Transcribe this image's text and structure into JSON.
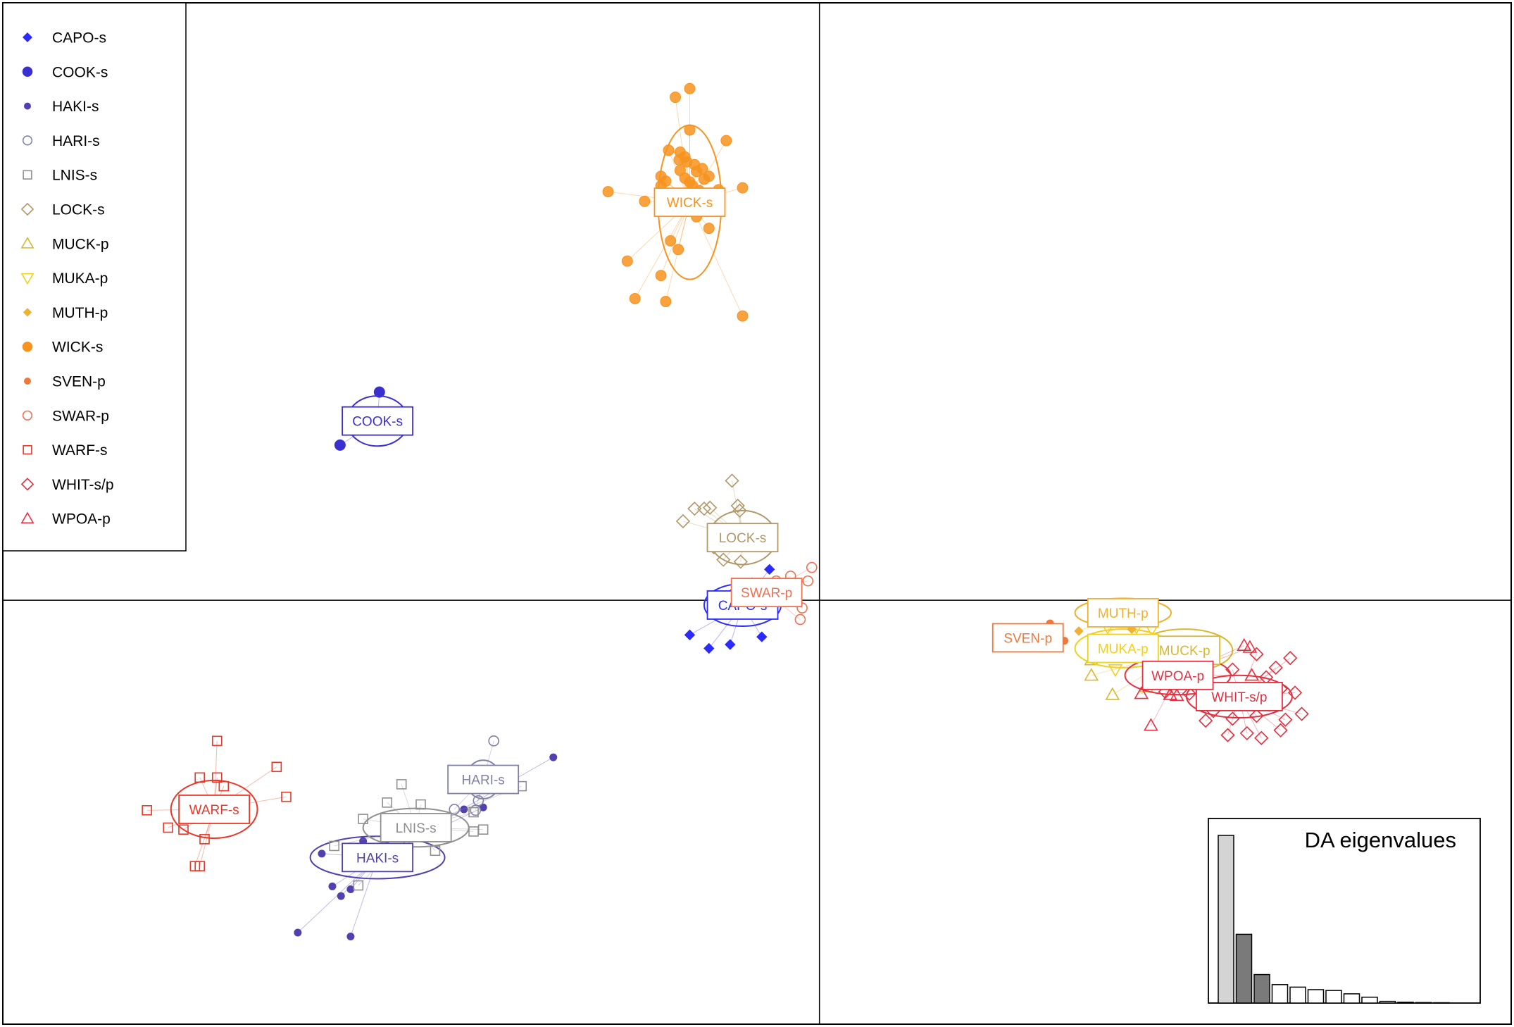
{
  "chart_data": {
    "type": "scatter",
    "axes": {
      "x_range": [
        -8.5,
        7.2
      ],
      "y_range": [
        -4.4,
        6.2
      ],
      "origin_lines": true
    },
    "legend": {
      "placement": "top-left"
    },
    "groups": [
      {
        "name": "CAPO-s",
        "color": "#2b2bff",
        "marker": "diamond-filled",
        "label": "CAPO-s",
        "centroid": [
          -0.8,
          -0.05
        ],
        "ellipse": [
          0.4,
          0.22
        ],
        "points": [
          [
            -1.35,
            -0.36
          ],
          [
            -1.15,
            -0.5
          ],
          [
            -0.93,
            -0.46
          ],
          [
            -0.6,
            -0.38
          ],
          [
            -0.52,
            0.32
          ],
          [
            -0.7,
            0.18
          ],
          [
            -0.9,
            0.08
          ]
        ]
      },
      {
        "name": "COOK-s",
        "color": "#3a2fd0",
        "marker": "circle-filled",
        "label": "COOK-s",
        "centroid": [
          -4.6,
          1.86
        ],
        "ellipse": [
          0.32,
          0.26
        ],
        "points": [
          [
            -4.58,
            2.16
          ],
          [
            -4.99,
            1.61
          ]
        ]
      },
      {
        "name": "HAKI-s",
        "color": "#5040b0",
        "marker": "circle-small-filled",
        "label": "HAKI-s",
        "centroid": [
          -4.6,
          -2.67
        ],
        "ellipse": [
          0.7,
          0.22
        ],
        "points": [
          [
            -5.43,
            -3.45
          ],
          [
            -4.88,
            -3.49
          ],
          [
            -5.07,
            -2.97
          ],
          [
            -4.98,
            -3.07
          ],
          [
            -4.88,
            -3.0
          ],
          [
            -5.18,
            -2.63
          ],
          [
            -4.75,
            -2.5
          ],
          [
            -4.5,
            -2.48
          ],
          [
            -3.7,
            -2.17
          ],
          [
            -3.5,
            -2.15
          ],
          [
            -2.77,
            -1.63
          ]
        ]
      },
      {
        "name": "HARI-s",
        "color": "#8080a8",
        "marker": "circle-open",
        "label": "HARI-s",
        "centroid": [
          -3.5,
          -1.86
        ],
        "ellipse": [
          0.18,
          0.2
        ],
        "points": [
          [
            -3.39,
            -1.46
          ],
          [
            -3.58,
            -2.18
          ],
          [
            -3.55,
            -2.08
          ],
          [
            -3.8,
            -2.17
          ]
        ]
      },
      {
        "name": "LNIS-s",
        "color": "#909090",
        "marker": "square-open",
        "label": "LNIS-s",
        "centroid": [
          -4.2,
          -2.36
        ],
        "ellipse": [
          0.55,
          0.2
        ],
        "points": [
          [
            -5.05,
            -2.55
          ],
          [
            -4.75,
            -2.27
          ],
          [
            -4.5,
            -2.1
          ],
          [
            -4.35,
            -1.91
          ],
          [
            -4.15,
            -2.12
          ],
          [
            -3.9,
            -2.3
          ],
          [
            -3.6,
            -2.4
          ],
          [
            -3.5,
            -2.38
          ],
          [
            -4.8,
            -2.96
          ],
          [
            -4.0,
            -2.6
          ],
          [
            -3.1,
            -1.93
          ],
          [
            -3.6,
            -2.2
          ]
        ]
      },
      {
        "name": "LOCK-s",
        "color": "#b09868",
        "marker": "diamond-open",
        "label": "LOCK-s",
        "centroid": [
          -0.8,
          0.65
        ],
        "ellipse": [
          0.35,
          0.28
        ],
        "points": [
          [
            -0.91,
            1.24
          ],
          [
            -0.85,
            0.98
          ],
          [
            -0.83,
            0.93
          ],
          [
            -1.14,
            0.96
          ],
          [
            -1.2,
            0.95
          ],
          [
            -1.3,
            0.95
          ],
          [
            -1.42,
            0.82
          ],
          [
            -0.6,
            0.57
          ],
          [
            -1.0,
            0.42
          ],
          [
            -0.82,
            0.4
          ],
          [
            -1.1,
            0.55
          ]
        ]
      },
      {
        "name": "MUCK-p",
        "color": "#d8b830",
        "marker": "triangle-open",
        "label": "MUCK-p",
        "centroid": [
          3.8,
          -0.52
        ],
        "ellipse": [
          0.5,
          0.22
        ],
        "points": [
          [
            2.83,
            -0.78
          ],
          [
            3.05,
            -0.98
          ],
          [
            3.4,
            -0.9
          ],
          [
            3.6,
            -0.85
          ],
          [
            3.25,
            -0.5
          ],
          [
            2.83,
            -0.62
          ]
        ]
      },
      {
        "name": "MUKA-p",
        "color": "#f0d020",
        "marker": "triangle-down-open",
        "label": "MUKA-p",
        "centroid": [
          3.16,
          -0.5
        ],
        "ellipse": [
          0.5,
          0.2
        ],
        "points": [
          [
            3.46,
            -0.3
          ],
          [
            3.3,
            -0.28
          ],
          [
            3.0,
            -0.28
          ],
          [
            3.08,
            -0.72
          ],
          [
            3.5,
            -0.6
          ]
        ]
      },
      {
        "name": "MUTH-p",
        "color": "#f0b030",
        "marker": "diamond-small-filled",
        "label": "MUTH-p",
        "centroid": [
          3.16,
          -0.13
        ],
        "ellipse": [
          0.5,
          0.15
        ],
        "points": [
          [
            2.7,
            -0.32
          ],
          [
            3.25,
            -0.3
          ],
          [
            2.95,
            -0.45
          ]
        ]
      },
      {
        "name": "WICK-s",
        "color": "#f7931e",
        "marker": "circle-filled",
        "label": "WICK-s",
        "centroid": [
          -1.35,
          4.13
        ],
        "ellipse": [
          0.33,
          0.8
        ],
        "points": [
          [
            -1.5,
            5.22
          ],
          [
            -1.35,
            5.31
          ],
          [
            -1.35,
            4.88
          ],
          [
            -0.97,
            4.77
          ],
          [
            -1.57,
            4.67
          ],
          [
            -1.45,
            4.65
          ],
          [
            -1.4,
            4.6
          ],
          [
            -1.46,
            4.57
          ],
          [
            -1.38,
            4.55
          ],
          [
            -1.3,
            4.52
          ],
          [
            -1.22,
            4.48
          ],
          [
            -1.28,
            4.45
          ],
          [
            -1.15,
            4.4
          ],
          [
            -1.45,
            4.46
          ],
          [
            -1.65,
            4.4
          ],
          [
            -1.4,
            4.38
          ],
          [
            -1.2,
            4.37
          ],
          [
            -1.35,
            4.34
          ],
          [
            -1.6,
            4.35
          ],
          [
            -1.65,
            4.3
          ],
          [
            -0.8,
            4.28
          ],
          [
            -1.32,
            4.3
          ],
          [
            -1.25,
            4.25
          ],
          [
            -1.05,
            4.26
          ],
          [
            -2.2,
            4.24
          ],
          [
            -1.82,
            4.14
          ],
          [
            -1.32,
            4.05
          ],
          [
            -1.28,
            3.98
          ],
          [
            -1.15,
            3.86
          ],
          [
            -1.55,
            3.73
          ],
          [
            -1.47,
            3.64
          ],
          [
            -2.0,
            3.52
          ],
          [
            -1.65,
            3.37
          ],
          [
            -1.92,
            3.13
          ],
          [
            -1.6,
            3.1
          ],
          [
            -0.8,
            2.95
          ]
        ]
      },
      {
        "name": "SVEN-p",
        "color": "#f07838",
        "marker": "circle-small-filled",
        "label": "SVEN-p",
        "centroid": [
          2.17,
          -0.39
        ],
        "ellipse": [
          0.25,
          0.12
        ],
        "points": [
          [
            2.4,
            -0.24
          ],
          [
            2.15,
            -0.28
          ],
          [
            2.55,
            -0.42
          ]
        ]
      },
      {
        "name": "SWAR-p",
        "color": "#f07050",
        "marker": "circle-open",
        "label": "SWAR-p",
        "centroid": [
          -0.55,
          0.08
        ],
        "ellipse": [
          0.3,
          0.12
        ],
        "points": [
          [
            -0.08,
            0.34
          ],
          [
            -0.2,
            -0.2
          ],
          [
            -0.18,
            -0.08
          ],
          [
            -0.12,
            0.2
          ],
          [
            -0.3,
            0.25
          ],
          [
            -0.45,
            0.2
          ]
        ]
      },
      {
        "name": "WARF-s",
        "color": "#e83828",
        "marker": "square-open",
        "label": "WARF-s",
        "centroid": [
          -6.3,
          -2.17
        ],
        "ellipse": [
          0.45,
          0.3
        ],
        "points": [
          [
            -6.27,
            -1.46
          ],
          [
            -5.65,
            -1.73
          ],
          [
            -6.45,
            -1.84
          ],
          [
            -6.27,
            -1.84
          ],
          [
            -6.2,
            -1.93
          ],
          [
            -5.55,
            -2.04
          ],
          [
            -7.0,
            -2.18
          ],
          [
            -6.62,
            -2.38
          ],
          [
            -6.78,
            -2.36
          ],
          [
            -6.4,
            -2.48
          ],
          [
            -6.5,
            -2.76
          ],
          [
            -6.45,
            -2.76
          ]
        ]
      },
      {
        "name": "WHIT-s/p",
        "color": "#e03040",
        "marker": "diamond-open",
        "label": "WHIT-s/p",
        "centroid": [
          4.37,
          -1.0
        ],
        "ellipse": [
          0.55,
          0.22
        ],
        "points": [
          [
            4.55,
            -0.56
          ],
          [
            4.75,
            -0.7
          ],
          [
            4.9,
            -0.6
          ],
          [
            4.65,
            -0.8
          ],
          [
            4.8,
            -0.92
          ],
          [
            4.95,
            -0.96
          ],
          [
            4.3,
            -0.72
          ],
          [
            4.0,
            -0.82
          ],
          [
            3.85,
            -0.97
          ],
          [
            4.1,
            -1.15
          ],
          [
            4.55,
            -1.2
          ],
          [
            4.85,
            -1.24
          ],
          [
            5.02,
            -1.18
          ],
          [
            4.3,
            -1.23
          ],
          [
            4.02,
            -1.25
          ],
          [
            4.25,
            -1.4
          ],
          [
            4.45,
            -1.38
          ],
          [
            4.6,
            -1.43
          ],
          [
            4.8,
            -1.35
          ],
          [
            3.6,
            -0.95
          ],
          [
            4.4,
            -1.05
          ]
        ]
      },
      {
        "name": "WPOA-p",
        "color": "#e83040",
        "marker": "triangle-open",
        "label": "WPOA-p",
        "centroid": [
          3.73,
          -0.78
        ],
        "ellipse": [
          0.55,
          0.2
        ],
        "points": [
          [
            3.68,
            -0.49
          ],
          [
            3.85,
            -0.5
          ],
          [
            3.92,
            -0.52
          ],
          [
            4.42,
            -0.47
          ],
          [
            4.48,
            -0.49
          ],
          [
            3.35,
            -0.97
          ],
          [
            3.65,
            -0.98
          ],
          [
            3.72,
            -0.99
          ],
          [
            3.45,
            -1.3
          ],
          [
            4.5,
            -0.78
          ]
        ]
      }
    ],
    "eigenvalues": {
      "title": "DA eigenvalues",
      "values": [
        100,
        41,
        17,
        11,
        9.5,
        8,
        7.5,
        5.5,
        3.5,
        1,
        0.5,
        0.3,
        0.2
      ],
      "fills": [
        "#d4d4d4",
        "#7a7a7a",
        "#7a7a7a",
        "#ffffff",
        "#ffffff",
        "#ffffff",
        "#ffffff",
        "#ffffff",
        "#ffffff",
        "#ffffff",
        "#ffffff",
        "#ffffff",
        "#ffffff"
      ]
    }
  }
}
